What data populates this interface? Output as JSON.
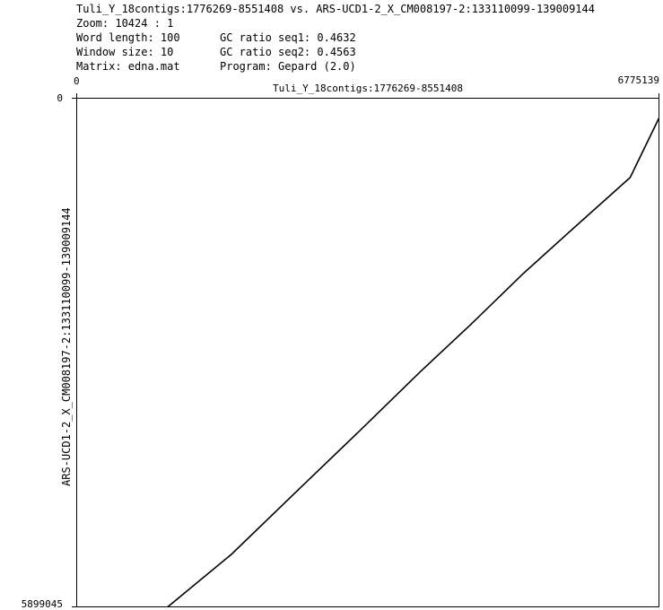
{
  "header": {
    "title_line": "Tuli_Y_18contigs:1776269-8551408 vs. ARS-UCD1-2_X_CM008197-2:133110099-139009144",
    "zoom": "Zoom: 10424 : 1",
    "word_length": "Word length: 100",
    "window_size": "Window size: 10",
    "matrix": "Matrix: edna.mat",
    "gc_seq1": "GC ratio seq1: 0.4632",
    "gc_seq2": "GC ratio seq2: 0.4563",
    "program": "Program: Gepard (2.0)"
  },
  "chart_data": {
    "type": "line",
    "title": "",
    "xlabel": "Tuli_Y_18contigs:1776269-8551408",
    "ylabel": "ARS-UCD1-2_X_CM008197-2:133110099-139009144",
    "xlim": [
      0,
      6775139
    ],
    "ylim": [
      0,
      5899045
    ],
    "y_inverted": true,
    "x_tick_labels": [
      "0",
      "6775139"
    ],
    "y_tick_labels": [
      "0",
      "5899045"
    ],
    "colors": {
      "line": "#000000",
      "frame": "#000000",
      "background": "#ffffff"
    },
    "series": [
      {
        "x": [
          1060000,
          1800000,
          2600000,
          3300000,
          4000000,
          4600000,
          5200000,
          5900000,
          6440000,
          6775139
        ],
        "y": [
          5899045,
          5290000,
          4520000,
          3850000,
          3170000,
          2610000,
          2030000,
          1400000,
          920000,
          230000
        ]
      }
    ]
  }
}
